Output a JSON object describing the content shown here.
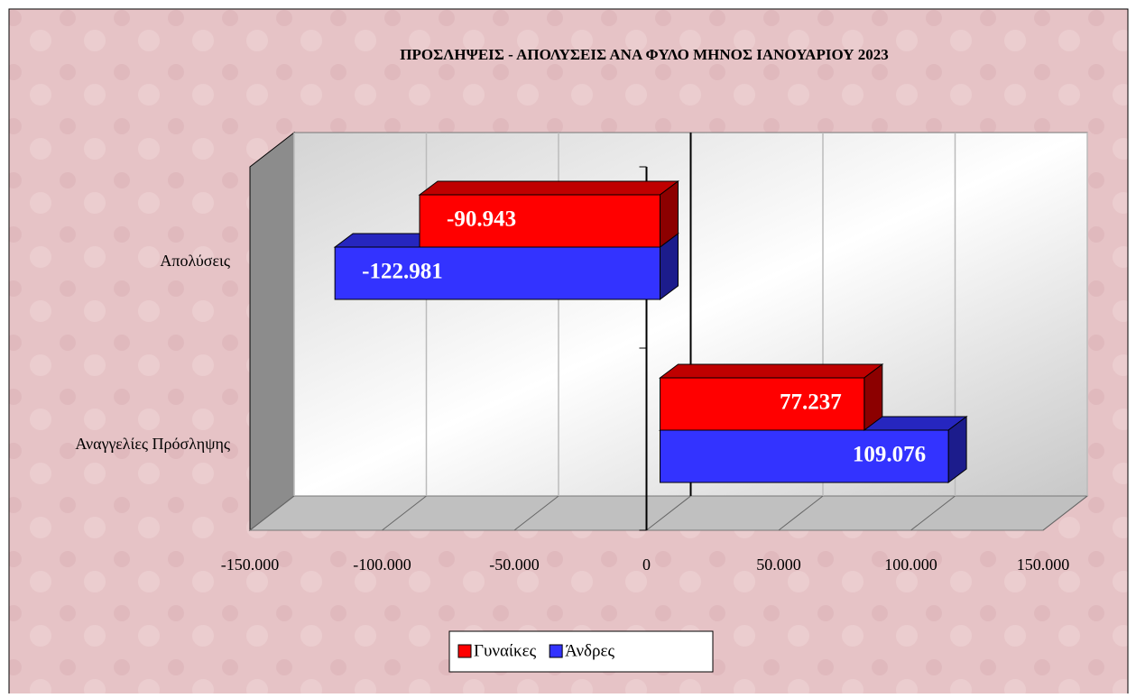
{
  "chart_data": {
    "type": "bar3d_horizontal",
    "title": "ΠΡΟΣΛΗΨΕΙΣ - ΑΠΟΛΥΣΕΙΣ ΑΝΑ ΦΥΛΟ ΜΗΝΟΣ  ΙΑΝΟΥΑΡΙΟΥ  2023",
    "categories": [
      "Απολύσεις",
      "Αναγγελίες Πρόσληψης"
    ],
    "series": [
      {
        "name": "Γυναίκες",
        "color": "#ff0000",
        "values": [
          -90943,
          77237
        ],
        "value_labels": [
          "-90.943",
          "77.237"
        ]
      },
      {
        "name": "Άνδρες",
        "color": "#3333ff",
        "values": [
          -122981,
          109076
        ],
        "value_labels": [
          "-122.981",
          "109.076"
        ]
      }
    ],
    "xlim": [
      -150000,
      150000
    ],
    "xticks": [
      {
        "value": -150000,
        "label": "-150.000"
      },
      {
        "value": -100000,
        "label": "-100.000"
      },
      {
        "value": -50000,
        "label": "-50.000"
      },
      0,
      {
        "value": 50000,
        "label": "50.000"
      },
      {
        "value": 100000,
        "label": "100.000"
      },
      {
        "value": 150000,
        "label": "150.000"
      }
    ],
    "grid": true
  }
}
